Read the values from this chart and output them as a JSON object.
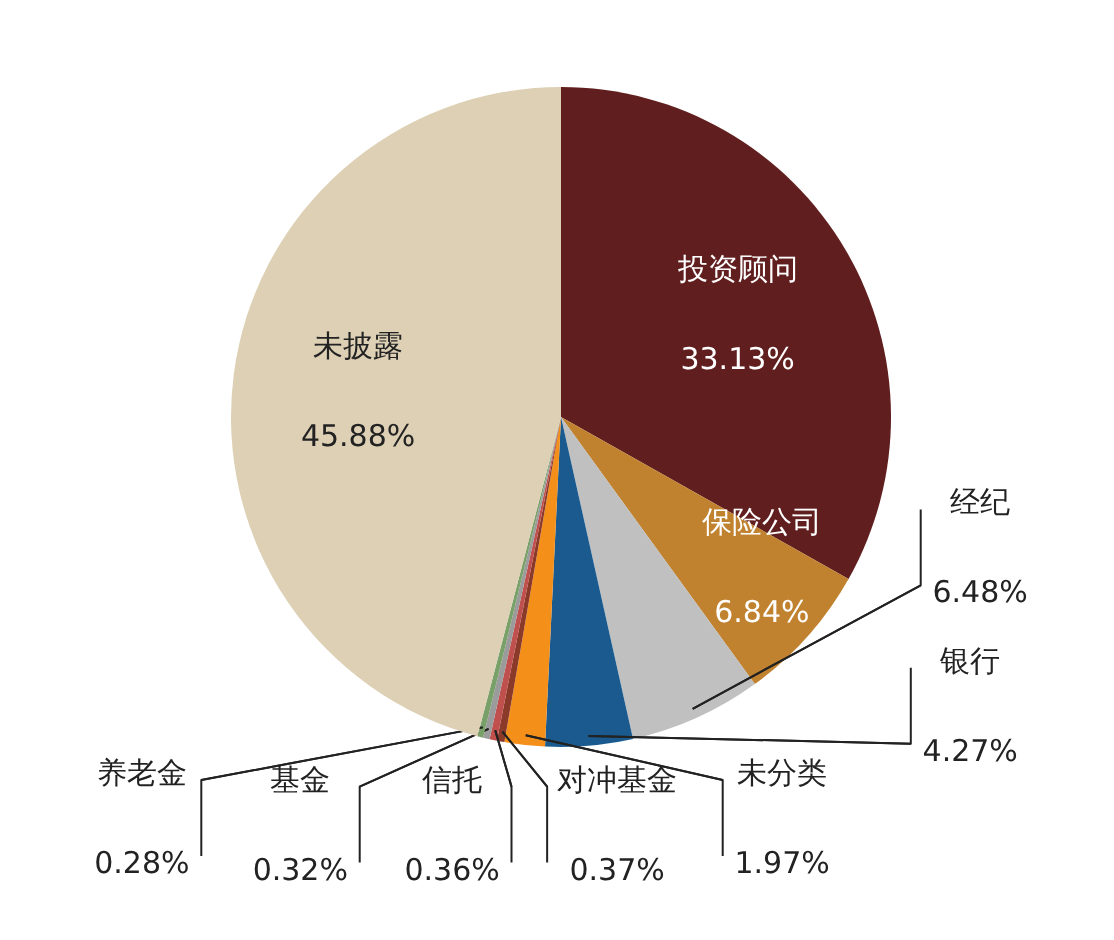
{
  "chart_data": {
    "type": "pie",
    "categories": [
      "投资顾问",
      "保险公司",
      "经纪",
      "银行",
      "未分类",
      "对冲基金",
      "信托",
      "基金",
      "养老金",
      "未披露"
    ],
    "values": [
      33.13,
      6.84,
      6.48,
      4.27,
      1.97,
      0.37,
      0.36,
      0.32,
      0.28,
      45.88
    ],
    "value_labels": [
      "33.13%",
      "6.84%",
      "6.48%",
      "4.27%",
      "1.97%",
      "0.37%",
      "0.36%",
      "0.32%",
      "0.28%",
      "45.88%"
    ],
    "colors": [
      "#611e1e",
      "#c0822f",
      "#c0c0c0",
      "#1a5a8e",
      "#f4901a",
      "#8b3a2a",
      "#c0504d",
      "#9b9b9b",
      "#7aa06a",
      "#ddd0b5"
    ]
  }
}
